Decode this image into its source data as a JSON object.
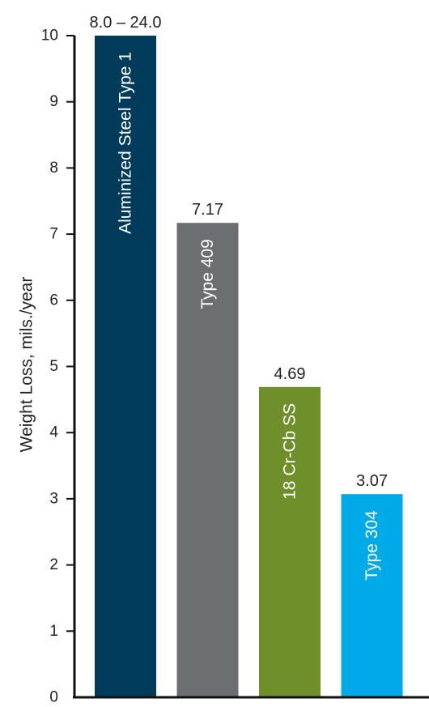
{
  "chart_data": {
    "type": "bar",
    "ylabel": "Weight Loss, mils./year",
    "ylim": [
      0,
      10
    ],
    "yticks": [
      0,
      1,
      2,
      3,
      4,
      5,
      6,
      7,
      8,
      9,
      10
    ],
    "grid": false,
    "legend": "none",
    "categories": [
      "Aluminized Steel Type 1",
      "Type 409",
      "18 Cr-Cb SS",
      "Type 304"
    ],
    "values": [
      10,
      7.17,
      4.69,
      3.07
    ],
    "data_labels": [
      "8.0 – 24.0",
      "7.17",
      "4.69",
      "3.07"
    ],
    "colors": [
      "#003b5c",
      "#6d6e71",
      "#6f8f2a",
      "#00a9e8"
    ]
  }
}
